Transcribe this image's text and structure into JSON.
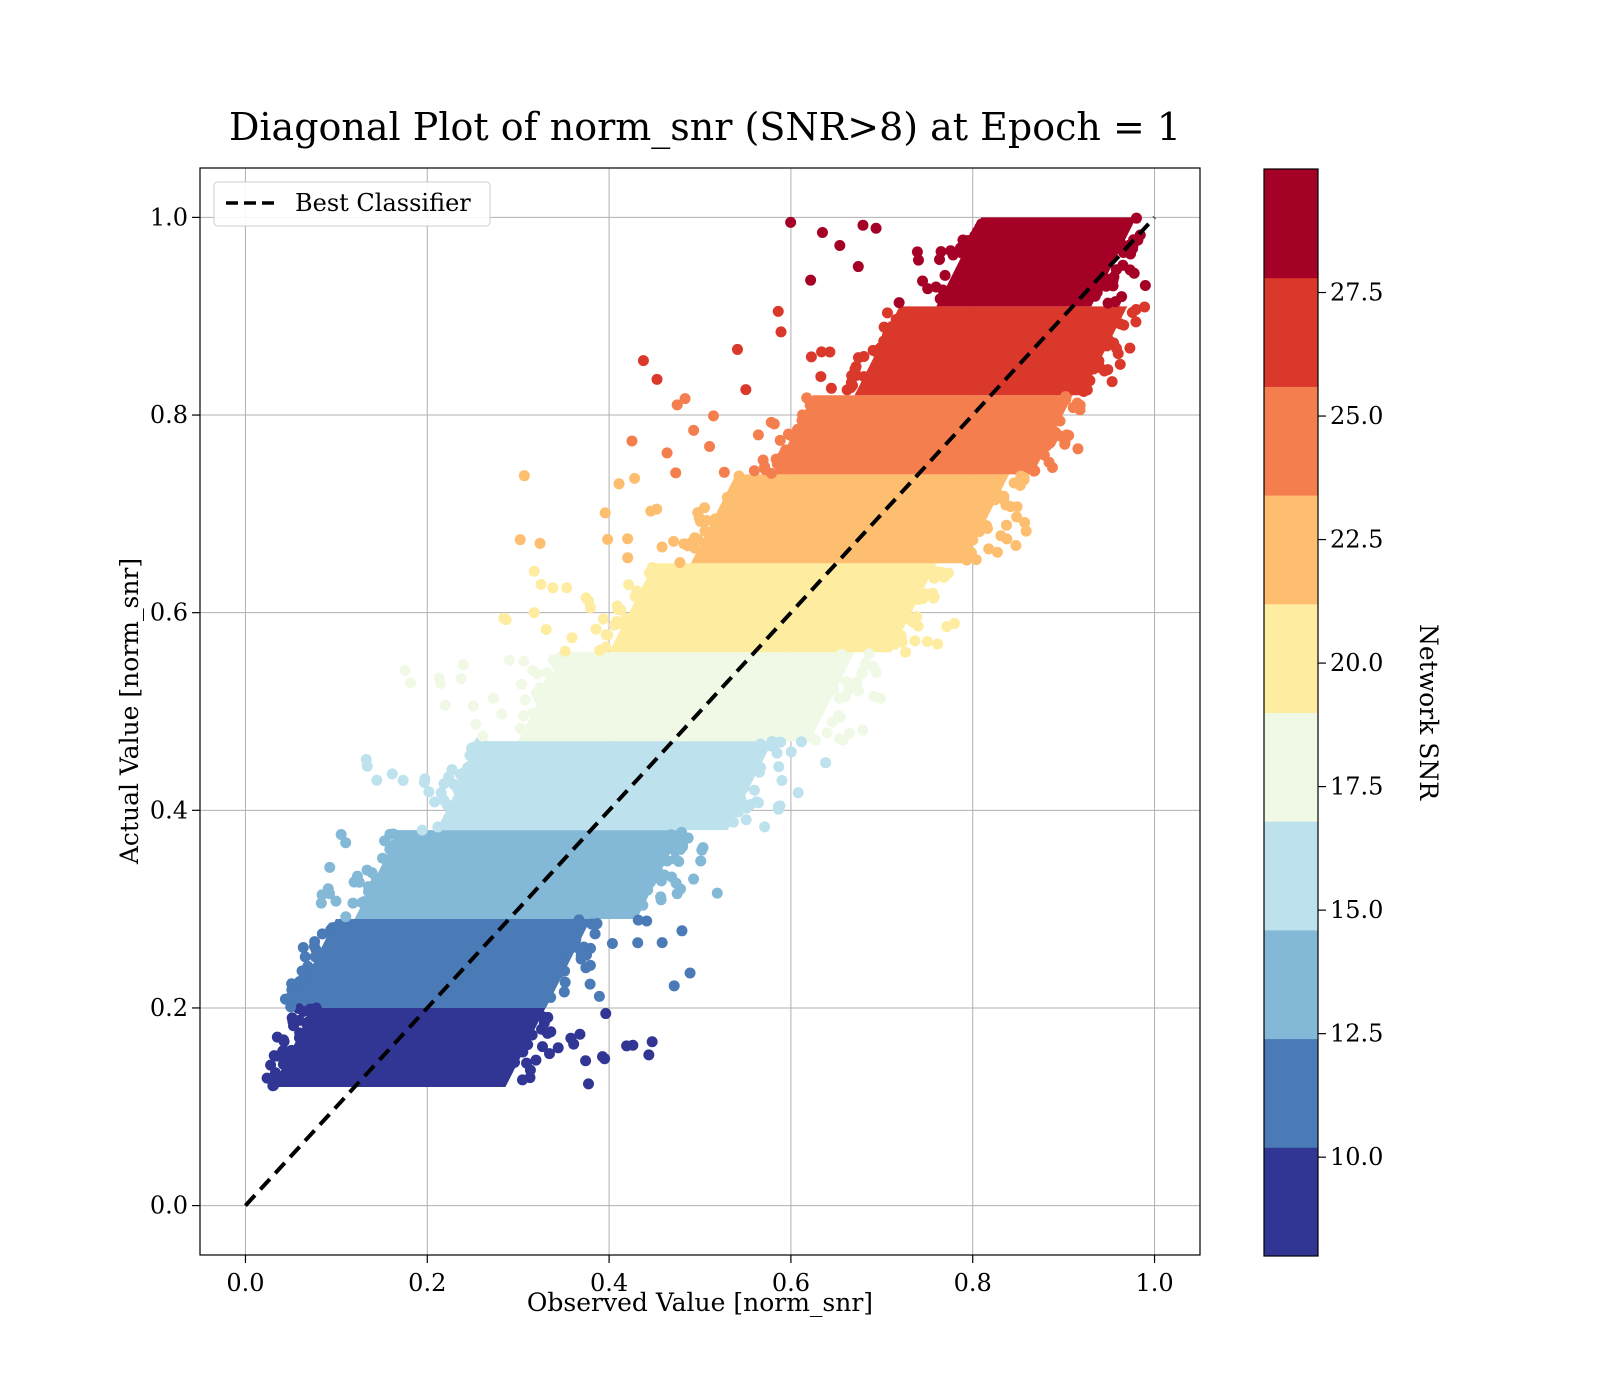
{
  "chart_data": {
    "type": "scatter",
    "title": "Diagonal Plot of norm_snr (SNR>8) at Epoch = 1",
    "xlabel": "Observed Value [norm_snr]",
    "ylabel": "Actual Value [norm_snr]",
    "xlim": [
      -0.05,
      1.05
    ],
    "ylim": [
      -0.05,
      1.05
    ],
    "xticks": [
      "0.0",
      "0.2",
      "0.4",
      "0.6",
      "0.8",
      "1.0"
    ],
    "yticks": [
      "0.0",
      "0.2",
      "0.4",
      "0.6",
      "0.8",
      "1.0"
    ],
    "grid": true,
    "legend": {
      "position": "upper-left",
      "entries": [
        "Best Classifier"
      ]
    },
    "reference_line": {
      "name": "Best Classifier",
      "style": "dashed",
      "color": "#000000",
      "x": [
        0,
        1
      ],
      "y": [
        0,
        1
      ]
    },
    "colorbar": {
      "label": "Network SNR",
      "range": [
        8,
        30
      ],
      "ticks": [
        "10.0",
        "12.5",
        "15.0",
        "17.5",
        "20.0",
        "22.5",
        "25.0",
        "27.5"
      ],
      "colors": [
        "#313695",
        "#4a7bb7",
        "#83b8d7",
        "#bde2ee",
        "#eff9e5",
        "#feeda1",
        "#fdbe70",
        "#f57e4e",
        "#da382a",
        "#a50026"
      ]
    },
    "bands": [
      {
        "snr_range": [
          8.0,
          10.2
        ],
        "y": [
          0.12,
          0.2
        ],
        "x_core": [
          0.03,
          0.33
        ],
        "x_spread": [
          0.03,
          0.46
        ],
        "color": "#313695"
      },
      {
        "snr_range": [
          10.2,
          12.4
        ],
        "y": [
          0.2,
          0.29
        ],
        "x_core": [
          0.05,
          0.38
        ],
        "x_spread": [
          0.04,
          0.5
        ],
        "color": "#4a7bb7"
      },
      {
        "snr_range": [
          12.4,
          14.6
        ],
        "y": [
          0.29,
          0.38
        ],
        "x_core": [
          0.12,
          0.48
        ],
        "x_spread": [
          0.07,
          0.52
        ],
        "color": "#83b8d7"
      },
      {
        "snr_range": [
          14.6,
          16.8
        ],
        "y": [
          0.38,
          0.47
        ],
        "x_core": [
          0.21,
          0.58
        ],
        "x_spread": [
          0.12,
          0.64
        ],
        "color": "#bde2ee"
      },
      {
        "snr_range": [
          16.8,
          19.0
        ],
        "y": [
          0.47,
          0.56
        ],
        "x_core": [
          0.3,
          0.67
        ],
        "x_spread": [
          0.16,
          0.7
        ],
        "color": "#eff9e5"
      },
      {
        "snr_range": [
          19.0,
          21.2
        ],
        "y": [
          0.56,
          0.65
        ],
        "x_core": [
          0.4,
          0.76
        ],
        "x_spread": [
          0.28,
          0.78
        ],
        "color": "#feeda1"
      },
      {
        "snr_range": [
          21.2,
          23.4
        ],
        "y": [
          0.65,
          0.74
        ],
        "x_core": [
          0.49,
          0.84
        ],
        "x_spread": [
          0.3,
          0.86
        ],
        "color": "#fdbe70"
      },
      {
        "snr_range": [
          23.4,
          25.6
        ],
        "y": [
          0.74,
          0.82
        ],
        "x_core": [
          0.58,
          0.91
        ],
        "x_spread": [
          0.39,
          0.93
        ],
        "color": "#f57e4e"
      },
      {
        "snr_range": [
          25.6,
          27.8
        ],
        "y": [
          0.82,
          0.91
        ],
        "x_core": [
          0.67,
          0.97
        ],
        "x_spread": [
          0.43,
          0.98
        ],
        "color": "#da382a"
      },
      {
        "snr_range": [
          27.8,
          30.0
        ],
        "y": [
          0.91,
          1.0
        ],
        "x_core": [
          0.76,
          0.98
        ],
        "x_spread": [
          0.56,
          0.99
        ],
        "color": "#a50026"
      }
    ]
  }
}
